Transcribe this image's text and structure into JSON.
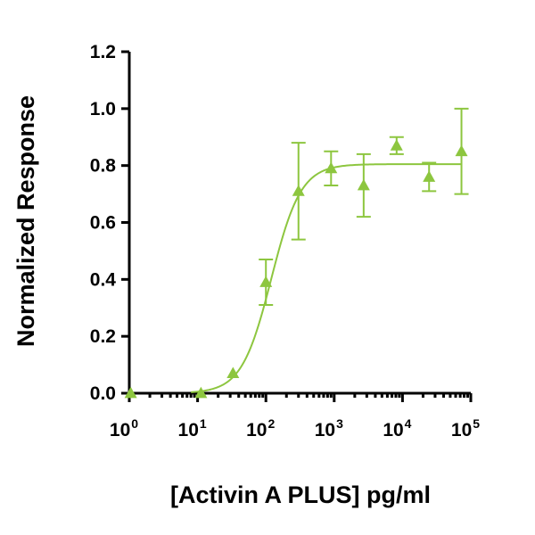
{
  "chart_data": {
    "type": "scatter",
    "xlabel": "[Activin A PLUS] pg/ml",
    "ylabel": "Normalized Response",
    "x_scale": "log",
    "xlim": [
      1,
      100000
    ],
    "ylim": [
      0,
      1.2
    ],
    "y_ticks": [
      0.0,
      0.2,
      0.4,
      0.6,
      0.8,
      1.0,
      1.2
    ],
    "y_tick_labels": [
      "0.0",
      "0.2",
      "0.4",
      "0.6",
      "0.8",
      "1.0",
      "1.2"
    ],
    "x_ticks": [
      1,
      10,
      100,
      1000,
      10000,
      100000
    ],
    "x_tick_labels": [
      {
        "base": "10",
        "exp": "0"
      },
      {
        "base": "10",
        "exp": "1"
      },
      {
        "base": "10",
        "exp": "2"
      },
      {
        "base": "10",
        "exp": "3"
      },
      {
        "base": "10",
        "exp": "4"
      },
      {
        "base": "10",
        "exp": "5"
      }
    ],
    "grid": false,
    "color": "#8dc63f",
    "marker": "triangle",
    "series": [
      {
        "points": [
          {
            "x": 1.05,
            "y": 0.0,
            "err": 0
          },
          {
            "x": 11.2,
            "y": 0.0,
            "err": 0
          },
          {
            "x": 33,
            "y": 0.07,
            "err": 0
          },
          {
            "x": 100,
            "y": 0.39,
            "err": 0.08
          },
          {
            "x": 300,
            "y": 0.71,
            "err": 0.17
          },
          {
            "x": 900,
            "y": 0.79,
            "err": 0.06
          },
          {
            "x": 2700,
            "y": 0.73,
            "err": 0.11
          },
          {
            "x": 8200,
            "y": 0.87,
            "err": 0.03
          },
          {
            "x": 24500,
            "y": 0.76,
            "err": 0.05
          },
          {
            "x": 73000,
            "y": 0.85,
            "err": 0.15
          }
        ],
        "fit": {
          "model": "4PL",
          "bottom": 0.0,
          "top": 0.805,
          "ec50": 120,
          "hill": 2.0
        }
      }
    ]
  }
}
